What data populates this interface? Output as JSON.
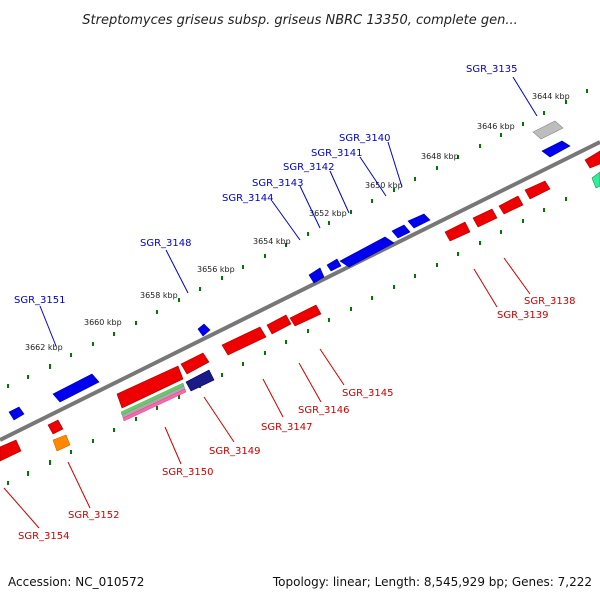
{
  "title": "Streptomyces griseus subsp. griseus NBRC 13350, complete gen...",
  "footer": {
    "accession": "Accession: NC_010572",
    "topology": "Topology: linear; Length: 8,545,929 bp; Genes: 7,222"
  },
  "scale_labels": [
    "3644 kbp",
    "3646 kbp",
    "3648 kbp",
    "3650 kbp",
    "3652 kbp",
    "3654 kbp",
    "3656 kbp",
    "3658 kbp",
    "3660 kbp",
    "3662 kbp"
  ],
  "genes_top": [
    "SGR_3135",
    "SGR_3140",
    "SGR_3141",
    "SGR_3142",
    "SGR_3143",
    "SGR_3144",
    "SGR_3148",
    "SGR_3151"
  ],
  "genes_bottom": [
    "SGR_3138",
    "SGR_3139",
    "SGR_3145",
    "SGR_3146",
    "SGR_3147",
    "SGR_3149",
    "SGR_3150",
    "SGR_3152",
    "SGR_3154"
  ],
  "colors": {
    "backbone": "#777777",
    "forward_strand": "#0000ee",
    "reverse_strand": "#ee0000",
    "ticks": "#007700",
    "label_top": "#0000cc",
    "label_bottom": "#cc0000"
  }
}
